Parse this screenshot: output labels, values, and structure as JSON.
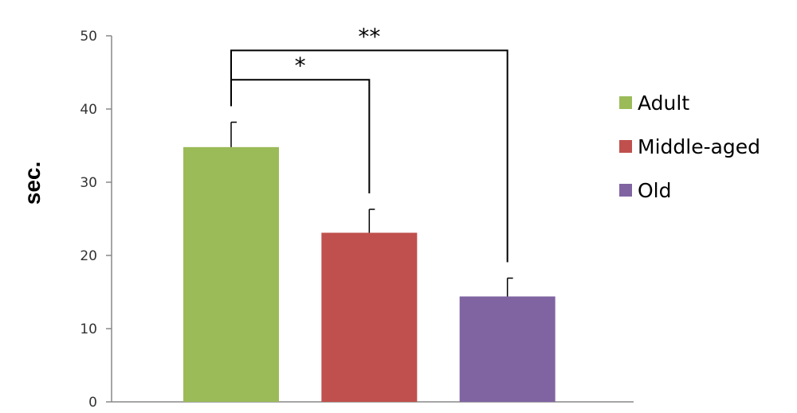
{
  "chart_data": {
    "type": "bar",
    "title": "",
    "xlabel": "",
    "ylabel": "sec.",
    "ylim": [
      0,
      50
    ],
    "yticks": [
      0,
      10,
      20,
      30,
      40,
      50
    ],
    "grid": false,
    "legend_position": "right",
    "series": [
      {
        "name": "Adult",
        "value": 34.8,
        "error": 3.4,
        "color": "#9BBB59"
      },
      {
        "name": "Middle-aged",
        "value": 23.1,
        "error": 3.2,
        "color": "#C0504D"
      },
      {
        "name": "Old",
        "value": 14.4,
        "error": 2.5,
        "color": "#8064A2"
      }
    ],
    "significance": [
      {
        "from": 0,
        "to": 1,
        "label": "*",
        "level": 44
      },
      {
        "from": 0,
        "to": 2,
        "label": "**",
        "level": 48
      }
    ]
  }
}
